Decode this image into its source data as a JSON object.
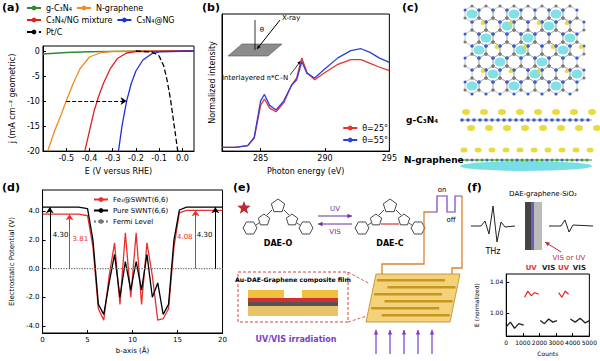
{
  "panel_labels": [
    "(a)",
    "(b)",
    "(c)",
    "(d)",
    "(e)",
    "(f)"
  ],
  "chart_data": [
    {
      "type": "line",
      "x_label": "E (V versus RHE)",
      "y_label": "j (mA cm⁻² geometric)",
      "xlim": [
        -0.6,
        0.05
      ],
      "xticks": [
        -0.5,
        -0.4,
        -0.3,
        -0.2,
        -0.1,
        {
          "value": 0,
          "label": "0.0"
        }
      ],
      "ylim": [
        -20,
        1
      ],
      "yticks": [
        -20,
        -15,
        -10,
        -5,
        0
      ],
      "legend": "top",
      "series": [
        {
          "name": "g-C₃N₄",
          "color": "#2e8b2e",
          "line_style": "solid",
          "x": [
            -0.6,
            -0.5,
            -0.4,
            -0.3,
            -0.2,
            -0.1,
            0,
            0.05
          ],
          "values": [
            -0.6,
            -0.3,
            -0.15,
            -0.08,
            -0.04,
            -0.02,
            0,
            0
          ]
        },
        {
          "name": "N-graphene",
          "color": "#f28a1e",
          "line_style": "solid",
          "x": [
            -0.58,
            -0.55,
            -0.52,
            -0.5,
            -0.47,
            -0.44,
            -0.4,
            -0.35,
            -0.3,
            0.05
          ],
          "values": [
            -20,
            -16,
            -12.5,
            -10,
            -6.5,
            -3.5,
            -1.2,
            -0.3,
            -0.1,
            0
          ]
        },
        {
          "name": "C₃N₄/NG mixture",
          "color": "#e02020",
          "line_style": "solid",
          "x": [
            -0.42,
            -0.4,
            -0.38,
            -0.36,
            -0.34,
            -0.31,
            -0.28,
            -0.24,
            -0.2,
            0.05
          ],
          "values": [
            -20,
            -16,
            -12,
            -9,
            -6.5,
            -3.5,
            -1.5,
            -0.4,
            -0.1,
            0
          ]
        },
        {
          "name": "C₃N₄@NG",
          "color": "#2030e0",
          "line_style": "solid",
          "x": [
            -0.275,
            -0.26,
            -0.24,
            -0.22,
            -0.2,
            -0.17,
            -0.13,
            -0.1,
            0.05
          ],
          "values": [
            -20,
            -15,
            -10,
            -6.5,
            -4,
            -1.8,
            -0.5,
            -0.15,
            0
          ]
        },
        {
          "name": "Pt/C",
          "color": "#000000",
          "line_style": "dashed",
          "x": [
            -0.2,
            -0.13,
            -0.1,
            -0.08,
            -0.065,
            -0.05,
            -0.035,
            -0.02
          ],
          "values": [
            0,
            -0.2,
            -1,
            -3,
            -6,
            -10,
            -15,
            -20
          ]
        }
      ],
      "arrow": {
        "x": [
          -0.5,
          -0.24
        ],
        "y": [
          -10,
          -10
        ]
      }
    },
    {
      "type": "line",
      "x_label": "Photon energy (eV)",
      "y_label": "Normalized intensity",
      "xlim": [
        282,
        295
      ],
      "xticks": [
        285,
        290,
        295
      ],
      "ylim": [
        0,
        1.5
      ],
      "tick_labels": "x",
      "legend": "lower right",
      "series": [
        {
          "name": "θ=25°",
          "color": "#e8312f",
          "line_style": "solid",
          "x": [
            282,
            283,
            284,
            284.5,
            285,
            285.3,
            285.7,
            286.2,
            286.8,
            287.4,
            287.8,
            288.2,
            288.6,
            289.2,
            290,
            291,
            292,
            292.8,
            293.5,
            294.2,
            295
          ],
          "values": [
            0.04,
            0.04,
            0.06,
            0.14,
            0.5,
            0.57,
            0.47,
            0.43,
            0.53,
            0.72,
            0.8,
            1.02,
            0.86,
            0.78,
            0.86,
            0.95,
            1.0,
            1.0,
            0.96,
            0.92,
            0.88
          ]
        },
        {
          "name": "θ=55°",
          "color": "#2f3fd6",
          "line_style": "solid",
          "x": [
            282,
            283,
            284,
            284.5,
            285,
            285.3,
            285.7,
            286.2,
            286.8,
            287.4,
            287.8,
            288.2,
            288.6,
            289.2,
            290,
            291,
            292,
            292.8,
            293.5,
            294.2,
            295
          ],
          "values": [
            0.04,
            0.04,
            0.06,
            0.15,
            0.55,
            0.62,
            0.5,
            0.45,
            0.55,
            0.72,
            0.78,
            0.98,
            0.85,
            0.8,
            0.9,
            1.02,
            1.1,
            1.12,
            1.08,
            1.02,
            0.97
          ]
        }
      ],
      "annotation": {
        "text": "Interlayered π*C–N",
        "x": 288.2,
        "y": 1.02
      },
      "inset": {
        "beam": "X-ray",
        "angle": "θ"
      }
    },
    {
      "type": "line",
      "x_label": "b-axis (Å)",
      "y_label": "Electrostatic Potential (V)",
      "xlim": [
        0,
        20
      ],
      "xticks": [
        0,
        5,
        10,
        15,
        20
      ],
      "ylim": [
        -4.5,
        5.5
      ],
      "yticks": [
        {
          "value": -4,
          "label": "-4.0"
        },
        {
          "value": -2,
          "label": "-2.0"
        },
        {
          "value": 0,
          "label": "0.0"
        },
        {
          "value": 2,
          "label": "2.0"
        },
        {
          "value": 4,
          "label": "4.0"
        }
      ],
      "legend": "top",
      "series": [
        {
          "name": "Fe₄@SWNT(6,6)",
          "color": "#e8312f",
          "line_style": "solid",
          "x": [
            0,
            4,
            5,
            5.6,
            6.2,
            6.8,
            7.4,
            8,
            8.6,
            9.2,
            9.8,
            10.4,
            11,
            11.6,
            12.2,
            12.8,
            13.4,
            14,
            14.6,
            15.2,
            16,
            20
          ],
          "values": [
            3.81,
            3.81,
            3.7,
            1.5,
            -2.8,
            -3.6,
            -0.5,
            1.8,
            -2.5,
            2.5,
            -2,
            2.5,
            -2.5,
            1.8,
            -0.5,
            -3.6,
            -3.5,
            -2.8,
            1.5,
            3.9,
            4.08,
            4.08
          ]
        },
        {
          "name": "Pure SWNT(6,6)",
          "color": "#000000",
          "line_style": "solid",
          "x": [
            0,
            4,
            5,
            5.6,
            6.2,
            6.8,
            7.4,
            8,
            8.6,
            9.2,
            9.8,
            10.4,
            11,
            11.6,
            12.2,
            12.8,
            13.4,
            14,
            14.6,
            15.2,
            16,
            20
          ],
          "values": [
            4.3,
            4.3,
            4.2,
            2,
            -2.5,
            -3.2,
            -1,
            1,
            -2,
            0.5,
            -1.5,
            0.5,
            -1.5,
            1,
            -2,
            -1,
            -3.2,
            -2.5,
            2,
            4.1,
            4.3,
            4.3
          ]
        },
        {
          "name": "Fermi Level",
          "color": "#777777",
          "line_style": "dotted",
          "x": [
            0,
            20
          ],
          "values": [
            0,
            0
          ]
        }
      ],
      "level_arrows": [
        {
          "x": 0.8,
          "value": 4.3,
          "label": "4.30",
          "color": "#000000"
        },
        {
          "x": 3.0,
          "value": 3.81,
          "label": "3.81",
          "color": "#e8312f"
        },
        {
          "x": 17.0,
          "value": 4.08,
          "label": "4.08",
          "color": "#e8312f"
        },
        {
          "x": 19.2,
          "value": 4.3,
          "label": "4.30",
          "color": "#000000"
        }
      ]
    },
    {
      "type": "line",
      "x_label": "Counts",
      "y_label": "E (normalized)",
      "xlim": [
        0,
        5000
      ],
      "xticks": [
        0,
        1000,
        2000,
        3000,
        4000,
        5000
      ],
      "ylim": [
        0.97,
        1.05
      ],
      "yticks": [
        {
          "value": 1,
          "label": "1.00"
        },
        {
          "value": 1.04,
          "label": "1.04"
        }
      ],
      "series": [
        {
          "color": "#222222",
          "line_style": "solid",
          "x": [
            0,
            250,
            500,
            750,
            1050,
            1100,
            2050,
            2300,
            2550,
            2800,
            3050,
            3100,
            3850,
            4150,
            4450,
            4750,
            5000
          ],
          "values": [
            0.982,
            0.988,
            0.98,
            0.986,
            0.984,
            null,
            0.99,
            0.986,
            0.992,
            0.988,
            0.99,
            null,
            0.992,
            0.988,
            0.993,
            0.987,
            0.99
          ]
        },
        {
          "color": "#e8312f",
          "line_style": "solid",
          "x": [
            1100,
            1300,
            1500,
            1700,
            1950,
            2000,
            3150,
            3350,
            3550,
            3750
          ],
          "values": [
            1.02,
            1.028,
            1.022,
            1.026,
            1.024,
            null,
            1.026,
            1.02,
            1.028,
            1.024
          ]
        }
      ],
      "region_labels": [
        {
          "text": "UV",
          "x": 1500,
          "color": "#e8312f"
        },
        {
          "text": "VIS",
          "x": 2550,
          "color": "#222222"
        },
        {
          "text": "UV",
          "x": 3450,
          "color": "#e8312f"
        },
        {
          "text": "VIS",
          "x": 4400,
          "color": "#222222"
        }
      ]
    }
  ],
  "diagrams": {
    "c": {
      "layer_labels": [
        "g-C₃N₄",
        "N-graphene"
      ]
    },
    "e": {
      "molecules": [
        "DAE-O",
        "DAE-C"
      ],
      "forward": "UV",
      "backward": "VIS",
      "switch": [
        "on",
        "off"
      ],
      "film": "Au-DAE-Graphene composite film",
      "irradiation": "UV/VIS irradiation"
    },
    "f": {
      "pulse": "THz",
      "sample": "DAE-graphene-SiO₂",
      "light": "VIS or UV"
    }
  }
}
